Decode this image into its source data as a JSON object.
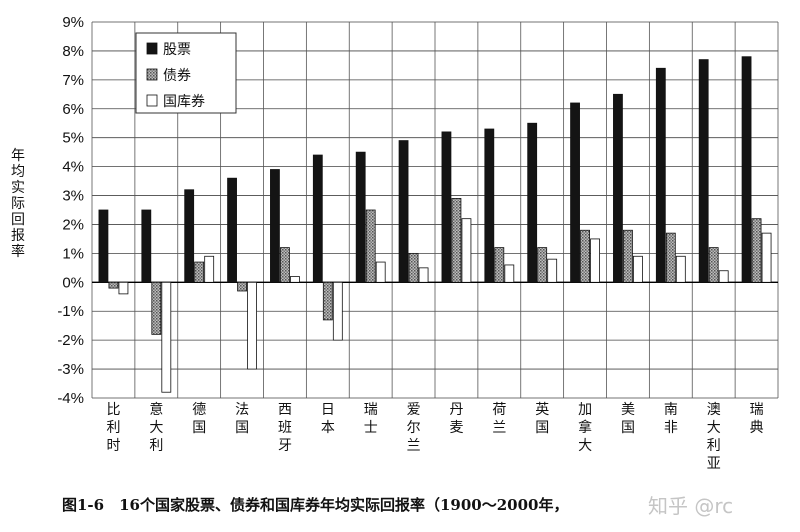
{
  "chart_data": {
    "type": "bar",
    "title": "",
    "ylabel": "年均实际回报率",
    "xlabel": "",
    "ylim": [
      -4,
      9
    ],
    "yticks": [
      "-4%",
      "-3%",
      "-2%",
      "-1%",
      "0%",
      "1%",
      "2%",
      "3%",
      "4%",
      "5%",
      "6%",
      "7%",
      "8%",
      "9%"
    ],
    "grid": true,
    "legend_position": "top-left",
    "categories": [
      "比利时",
      "意大利",
      "德国",
      "法国",
      "西班牙",
      "日本",
      "瑞士",
      "爱尔兰",
      "丹麦",
      "荷兰",
      "英国",
      "加拿大",
      "美国",
      "南非",
      "澳大利亚",
      "瑞典"
    ],
    "series": [
      {
        "name": "股票",
        "values": [
          2.5,
          2.5,
          3.2,
          3.6,
          3.9,
          4.4,
          4.5,
          4.9,
          5.2,
          5.3,
          5.5,
          6.2,
          6.5,
          7.4,
          7.7,
          7.8
        ]
      },
      {
        "name": "债券",
        "values": [
          -0.2,
          -1.8,
          0.7,
          -0.3,
          1.2,
          -1.3,
          2.5,
          1.0,
          2.9,
          1.2,
          1.2,
          1.8,
          1.8,
          1.7,
          1.2,
          2.2
        ]
      },
      {
        "name": "国库券",
        "values": [
          -0.4,
          -3.8,
          0.9,
          -3.0,
          0.2,
          -2.0,
          0.7,
          0.5,
          2.2,
          0.6,
          0.8,
          1.5,
          0.9,
          0.9,
          0.4,
          1.7
        ]
      }
    ],
    "colors": {
      "股票": "#141414",
      "债券": "#9a9a9a",
      "国库券": "#ffffff"
    }
  },
  "caption": "图1-6　16个国家股票、债券和国库券年均实际回报率（1900～2000年，",
  "watermark": "知乎 @rc"
}
